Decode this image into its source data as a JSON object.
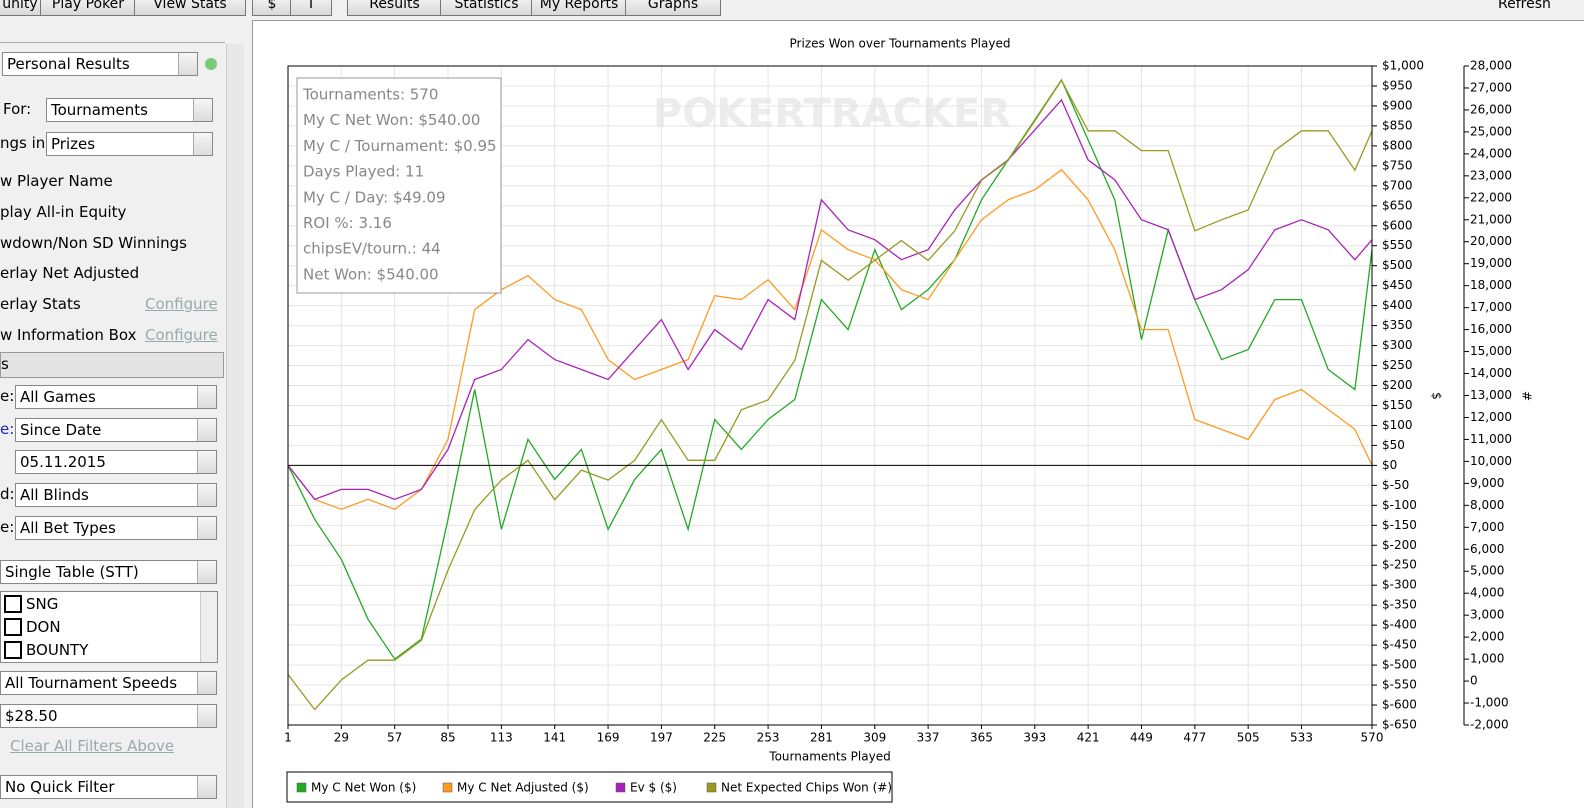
{
  "toolbar": {
    "tabs": [
      "unity",
      "Play Poker",
      "View Stats"
    ],
    "currency": [
      "$",
      "T"
    ],
    "views": [
      "Results",
      "Statistics",
      "My Reports",
      "Graphs"
    ],
    "refresh": "Refresh"
  },
  "sidebar": {
    "results_type": "Personal Results",
    "for_label": "For:",
    "for_value": "Tournaments",
    "rankings_label": "ngs in:",
    "rankings_value": "Prizes",
    "options": [
      "w Player Name",
      "play All-in Equity",
      "wdown/Non SD Winnings",
      "erlay Net Adjusted",
      "erlay Stats",
      "w Information Box"
    ],
    "configure": [
      "Configure",
      "Configure"
    ],
    "section": "s",
    "filters": [
      {
        "label": "e:",
        "value": "All Games"
      },
      {
        "label": "e:",
        "value": "Since Date"
      },
      {
        "label": "",
        "value": "05.11.2015"
      },
      {
        "label": "d:",
        "value": "All Blinds"
      },
      {
        "label": "e:",
        "value": "All Bet Types"
      }
    ],
    "table_type": "Single Table (STT)",
    "formats": [
      "SNG",
      "DON",
      "BOUNTY"
    ],
    "speed": "All Tournament Speeds",
    "buyin": "$28.50",
    "clear": "Clear All Filters Above",
    "quick_filter": "No Quick Filter"
  },
  "chart_data": {
    "type": "line",
    "title": "Prizes Won over Tournaments Played",
    "watermark": "POKERTRACKER",
    "x_label": "Tournaments Played",
    "y_label": "$",
    "y2_label": "#",
    "info": [
      "Tournaments: 570",
      "My C Net Won: $540.00",
      "My C / Tournament: $0.95",
      "Days Played: 11",
      "My C / Day: $49.09",
      "ROI %: 3.16",
      "chipsEV/tourn.: 44",
      "Net Won: $540.00"
    ],
    "x": [
      1,
      15,
      29,
      43,
      57,
      71,
      85,
      99,
      113,
      127,
      141,
      155,
      169,
      183,
      197,
      211,
      225,
      239,
      253,
      267,
      281,
      295,
      309,
      323,
      337,
      351,
      365,
      379,
      393,
      407,
      421,
      435,
      449,
      463,
      477,
      491,
      505,
      519,
      533,
      547,
      561,
      570
    ],
    "xlim": [
      1,
      570
    ],
    "xticks": [
      1,
      29,
      57,
      85,
      113,
      141,
      169,
      197,
      225,
      253,
      281,
      309,
      337,
      365,
      393,
      421,
      449,
      477,
      505,
      533,
      570
    ],
    "ylim": [
      -650,
      1000
    ],
    "yticks": [
      {
        "value": -650,
        "label": "$-650"
      },
      {
        "value": -600,
        "label": "$-600"
      },
      {
        "value": -550,
        "label": "$-550"
      },
      {
        "value": -500,
        "label": "$-500"
      },
      {
        "value": -450,
        "label": "$-450"
      },
      {
        "value": -400,
        "label": "$-400"
      },
      {
        "value": -350,
        "label": "$-350"
      },
      {
        "value": -300,
        "label": "$-300"
      },
      {
        "value": -250,
        "label": "$-250"
      },
      {
        "value": -200,
        "label": "$-200"
      },
      {
        "value": -150,
        "label": "$-150"
      },
      {
        "value": -100,
        "label": "$-100"
      },
      {
        "value": -50,
        "label": "$-50"
      },
      {
        "value": 0,
        "label": "$0"
      },
      {
        "value": 50,
        "label": "$50"
      },
      {
        "value": 100,
        "label": "$100"
      },
      {
        "value": 150,
        "label": "$150"
      },
      {
        "value": 200,
        "label": "$200"
      },
      {
        "value": 250,
        "label": "$250"
      },
      {
        "value": 300,
        "label": "$300"
      },
      {
        "value": 350,
        "label": "$350"
      },
      {
        "value": 400,
        "label": "$400"
      },
      {
        "value": 450,
        "label": "$450"
      },
      {
        "value": 500,
        "label": "$500"
      },
      {
        "value": 550,
        "label": "$550"
      },
      {
        "value": 600,
        "label": "$600"
      },
      {
        "value": 650,
        "label": "$650"
      },
      {
        "value": 700,
        "label": "$700"
      },
      {
        "value": 750,
        "label": "$750"
      },
      {
        "value": 800,
        "label": "$800"
      },
      {
        "value": 850,
        "label": "$850"
      },
      {
        "value": 900,
        "label": "$900"
      },
      {
        "value": 950,
        "label": "$950"
      },
      {
        "value": 1000,
        "label": "$1,000"
      }
    ],
    "y2lim": [
      -2000,
      28000
    ],
    "y2ticks": [
      {
        "value": -2000,
        "label": "-2,000"
      },
      {
        "value": -1000,
        "label": "-1,000"
      },
      0,
      {
        "value": 1000,
        "label": "1,000"
      },
      {
        "value": 2000,
        "label": "2,000"
      },
      {
        "value": 3000,
        "label": "3,000"
      },
      {
        "value": 4000,
        "label": "4,000"
      },
      {
        "value": 5000,
        "label": "5,000"
      },
      {
        "value": 6000,
        "label": "6,000"
      },
      {
        "value": 7000,
        "label": "7,000"
      },
      {
        "value": 8000,
        "label": "8,000"
      },
      {
        "value": 9000,
        "label": "9,000"
      },
      {
        "value": 10000,
        "label": "10,000"
      },
      {
        "value": 11000,
        "label": "11,000"
      },
      {
        "value": 12000,
        "label": "12,000"
      },
      {
        "value": 13000,
        "label": "13,000"
      },
      {
        "value": 14000,
        "label": "14,000"
      },
      {
        "value": 15000,
        "label": "15,000"
      },
      {
        "value": 16000,
        "label": "16,000"
      },
      {
        "value": 17000,
        "label": "17,000"
      },
      {
        "value": 18000,
        "label": "18,000"
      },
      {
        "value": 19000,
        "label": "19,000"
      },
      {
        "value": 20000,
        "label": "20,000"
      },
      {
        "value": 21000,
        "label": "21,000"
      },
      {
        "value": 22000,
        "label": "22,000"
      },
      {
        "value": 23000,
        "label": "23,000"
      },
      {
        "value": 24000,
        "label": "24,000"
      },
      {
        "value": 25000,
        "label": "25,000"
      },
      {
        "value": 26000,
        "label": "26,000"
      },
      {
        "value": 27000,
        "label": "27,000"
      },
      {
        "value": 28000,
        "label": "28,000"
      }
    ],
    "grid": true,
    "zero_line": true,
    "series": [
      {
        "name": "My C Net Won ($)",
        "color": "#22aa22",
        "values": [
          0,
          -135,
          -235,
          -385,
          -485,
          -435,
          -135,
          190,
          -160,
          65,
          -35,
          40,
          -160,
          -35,
          40,
          -160,
          115,
          40,
          115,
          165,
          415,
          340,
          540,
          390,
          440,
          515,
          665,
          765,
          865,
          965,
          815,
          665,
          315,
          590,
          415,
          265,
          290,
          415,
          415,
          240,
          190,
          540
        ]
      },
      {
        "name": "My C Net Adjusted ($)",
        "color": "#ff9922",
        "values": [
          0,
          -85,
          -110,
          -85,
          -110,
          -60,
          65,
          390,
          440,
          475,
          415,
          390,
          265,
          215,
          240,
          265,
          425,
          415,
          465,
          390,
          590,
          540,
          515,
          440,
          415,
          515,
          615,
          665,
          690,
          740,
          665,
          540,
          340,
          340,
          115,
          90,
          65,
          165,
          190,
          140,
          90,
          0
        ]
      },
      {
        "name": "Ev $ ($)",
        "color": "#aa22bb",
        "values": [
          0,
          -85,
          -60,
          -60,
          -85,
          -60,
          40,
          215,
          240,
          315,
          265,
          240,
          215,
          290,
          365,
          240,
          340,
          290,
          415,
          365,
          665,
          590,
          565,
          515,
          540,
          640,
          715,
          765,
          840,
          915,
          765,
          715,
          615,
          590,
          415,
          440,
          490,
          590,
          615,
          590,
          515,
          565
        ]
      },
      {
        "name": "Net Expected Chips Won (#)",
        "color": "#999922",
        "axis": "y2",
        "values": [
          300,
          -1300,
          50,
          950,
          950,
          1850,
          5050,
          7800,
          9150,
          10050,
          8250,
          9600,
          9150,
          10050,
          11900,
          10050,
          10050,
          12350,
          12800,
          14600,
          19150,
          18250,
          19150,
          20050,
          19150,
          20500,
          22800,
          23700,
          25500,
          27350,
          25050,
          25050,
          24150,
          24150,
          20500,
          21000,
          21450,
          24150,
          25050,
          25050,
          23250,
          25050
        ]
      }
    ]
  }
}
